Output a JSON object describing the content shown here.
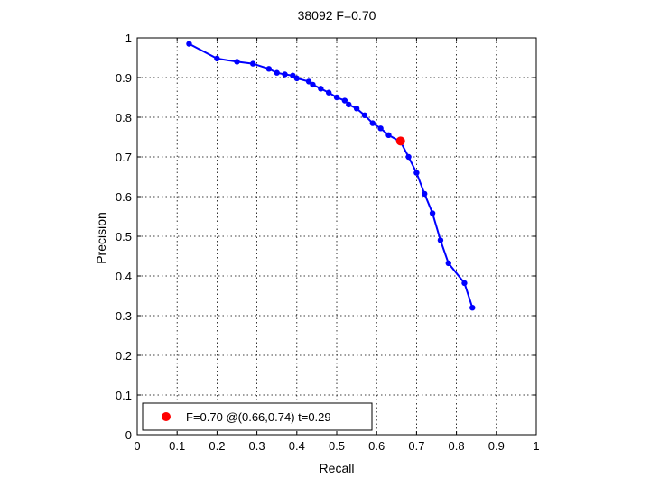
{
  "chart_data": {
    "type": "line",
    "title": "38092 F=0.70",
    "xlabel": "Recall",
    "ylabel": "Precision",
    "xlim": [
      0,
      1
    ],
    "ylim": [
      0,
      1
    ],
    "grid": true,
    "xticks": [
      "0",
      "0.1",
      "0.2",
      "0.3",
      "0.4",
      "0.5",
      "0.6",
      "0.7",
      "0.8",
      "0.9",
      "1"
    ],
    "yticks": [
      "0",
      "0.1",
      "0.2",
      "0.3",
      "0.4",
      "0.5",
      "0.6",
      "0.7",
      "0.8",
      "0.9",
      "1"
    ],
    "series": [
      {
        "color": "#0000ff",
        "marker": "dot",
        "points": [
          [
            0.13,
            0.985
          ],
          [
            0.2,
            0.948
          ],
          [
            0.25,
            0.94
          ],
          [
            0.29,
            0.935
          ],
          [
            0.33,
            0.922
          ],
          [
            0.35,
            0.912
          ],
          [
            0.37,
            0.908
          ],
          [
            0.39,
            0.905
          ],
          [
            0.4,
            0.898
          ],
          [
            0.43,
            0.89
          ],
          [
            0.44,
            0.882
          ],
          [
            0.46,
            0.872
          ],
          [
            0.48,
            0.862
          ],
          [
            0.5,
            0.85
          ],
          [
            0.52,
            0.842
          ],
          [
            0.53,
            0.832
          ],
          [
            0.55,
            0.822
          ],
          [
            0.57,
            0.805
          ],
          [
            0.59,
            0.785
          ],
          [
            0.61,
            0.772
          ],
          [
            0.63,
            0.755
          ],
          [
            0.66,
            0.738
          ],
          [
            0.68,
            0.7
          ],
          [
            0.7,
            0.66
          ],
          [
            0.72,
            0.607
          ],
          [
            0.74,
            0.558
          ],
          [
            0.76,
            0.49
          ],
          [
            0.78,
            0.432
          ],
          [
            0.82,
            0.382
          ],
          [
            0.84,
            0.32
          ]
        ]
      }
    ],
    "highlight": {
      "x": 0.66,
      "y": 0.74,
      "color": "#ff0000"
    },
    "legend": {
      "text": "F=0.70 @(0.66,0.74) t=0.29",
      "placement": "bottom-left",
      "marker_color": "#ff0000"
    }
  }
}
